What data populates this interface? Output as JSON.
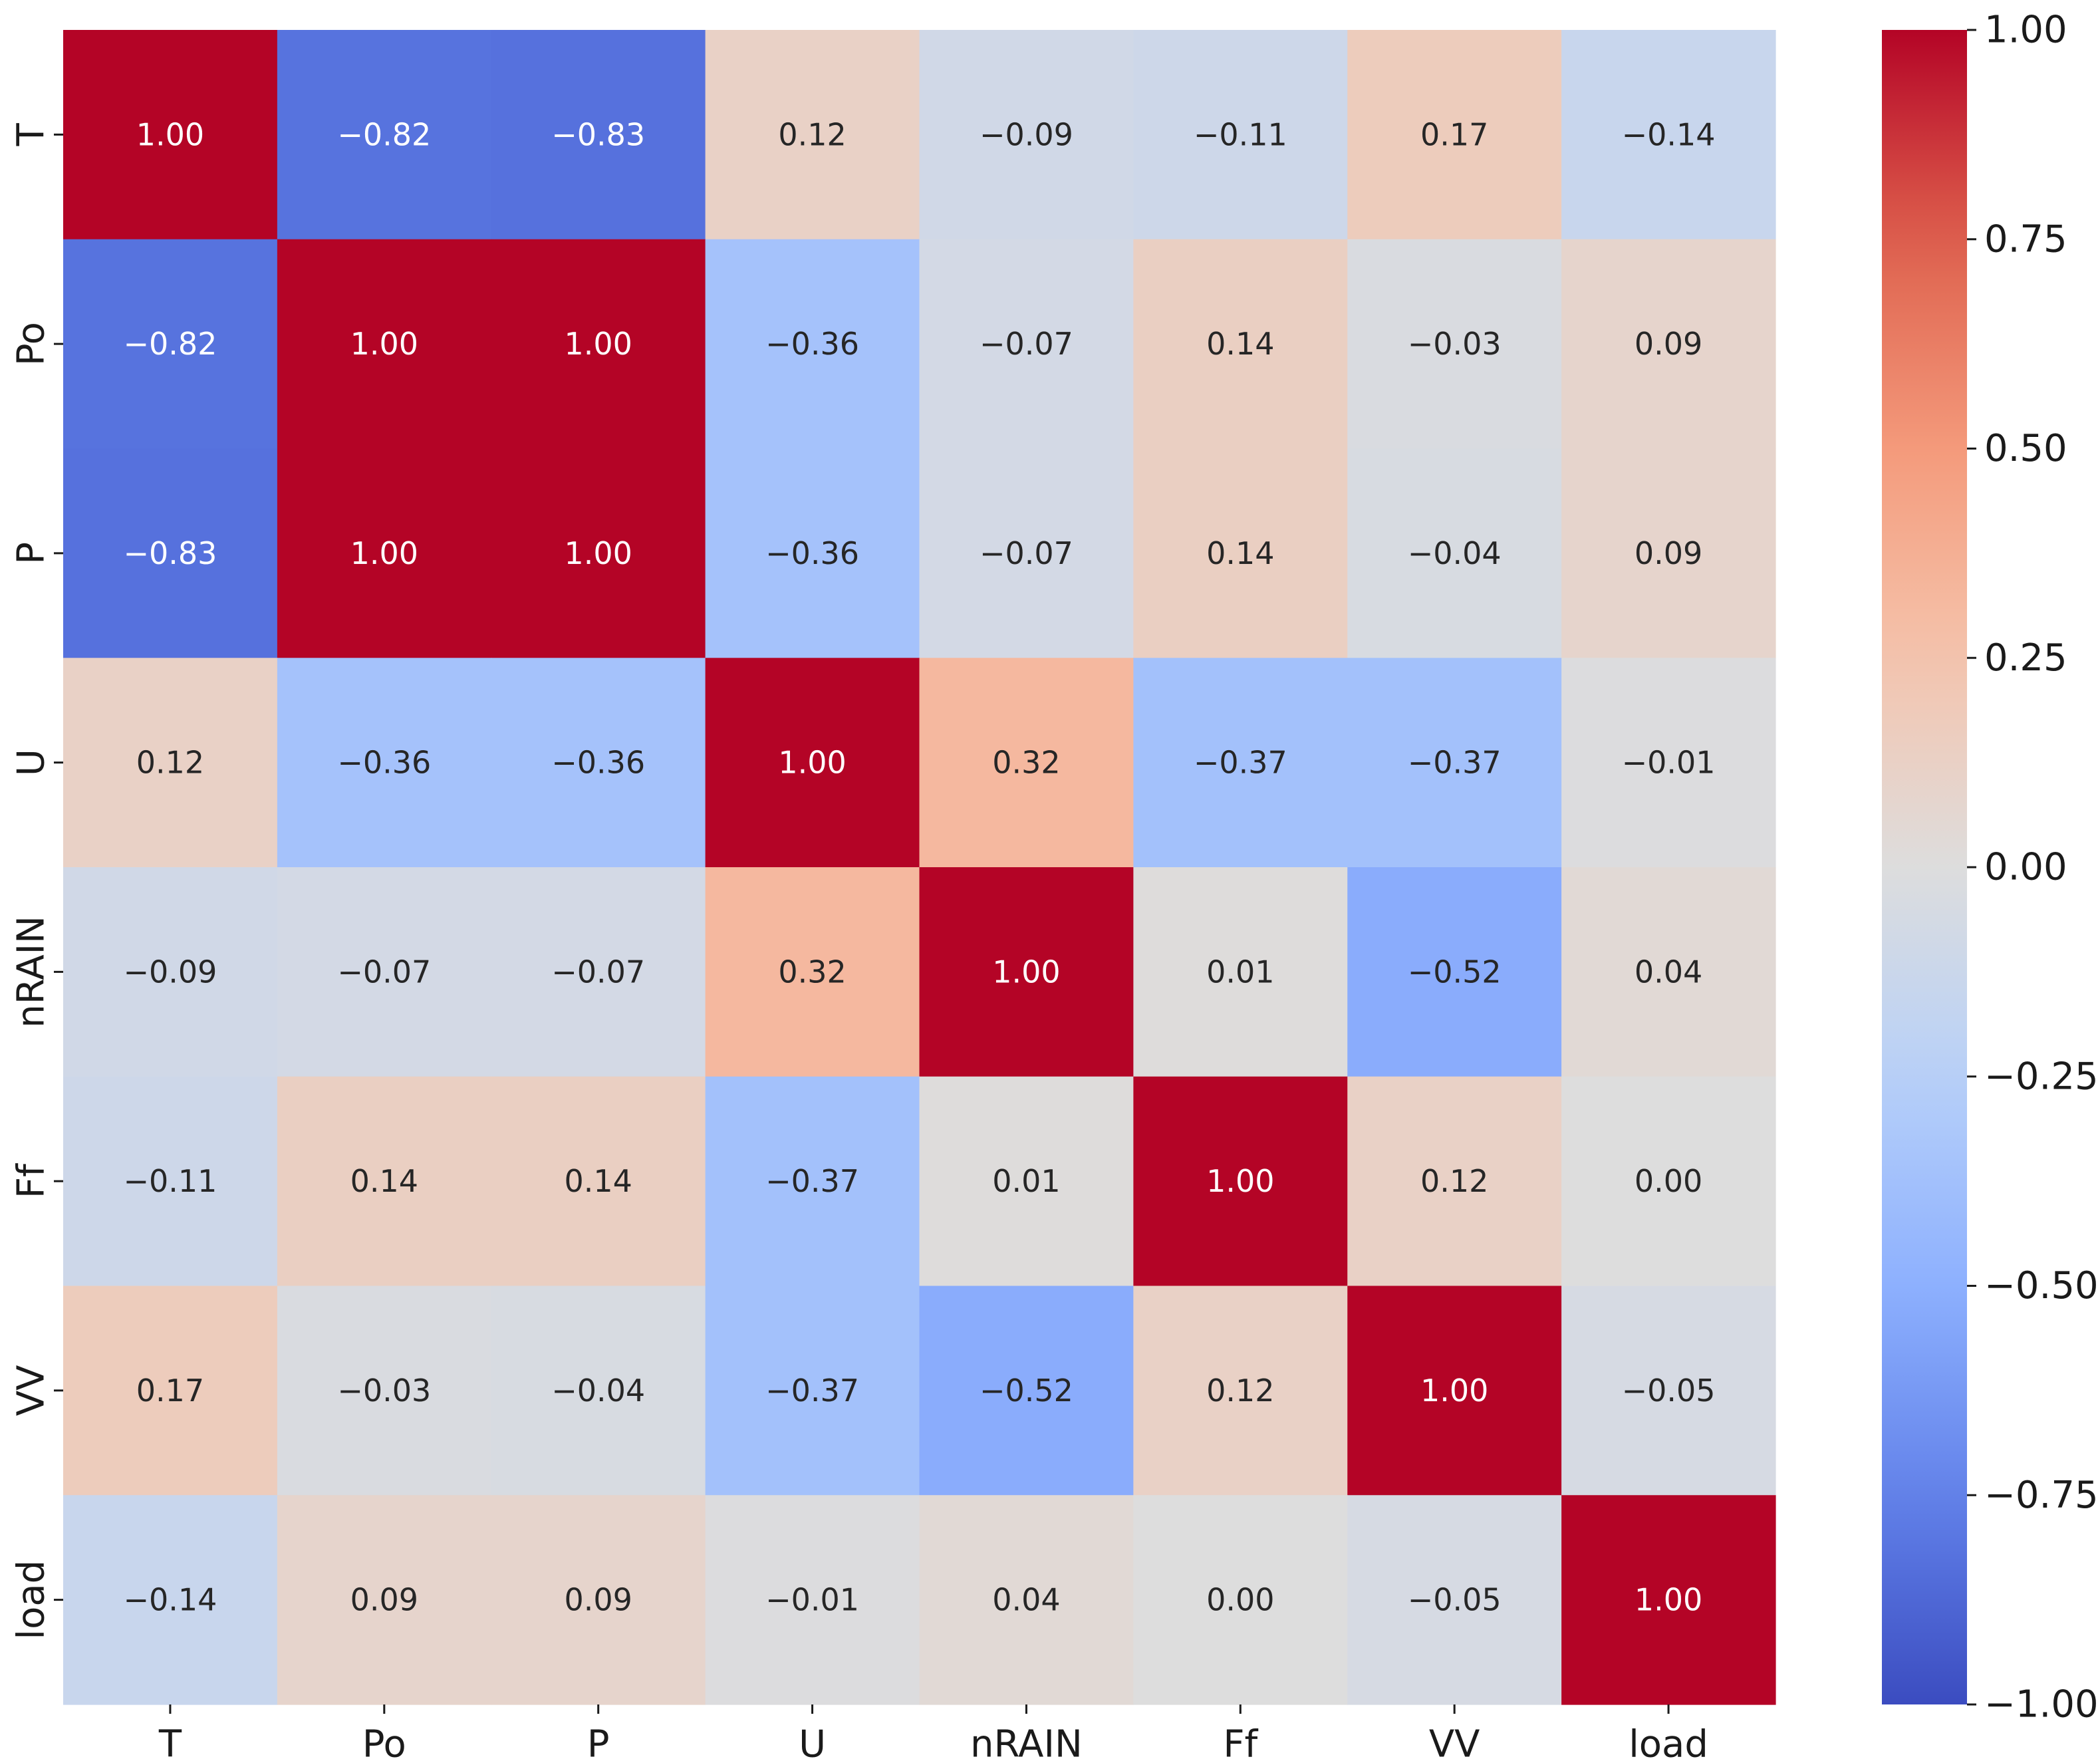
{
  "chart_data": {
    "type": "heatmap",
    "title": "",
    "xlabel": "",
    "ylabel": "",
    "colormap": "coolwarm",
    "vmin": -1.0,
    "vmax": 1.0,
    "x_labels": [
      "T",
      "Po",
      "P",
      "U",
      "nRAIN",
      "Ff",
      "VV",
      "load"
    ],
    "y_labels": [
      "T",
      "Po",
      "P",
      "U",
      "nRAIN",
      "Ff",
      "VV",
      "load"
    ],
    "values": [
      [
        1.0,
        -0.82,
        -0.83,
        0.12,
        -0.09,
        -0.11,
        0.17,
        -0.14
      ],
      [
        -0.82,
        1.0,
        1.0,
        -0.36,
        -0.07,
        0.14,
        -0.03,
        0.09
      ],
      [
        -0.83,
        1.0,
        1.0,
        -0.36,
        -0.07,
        0.14,
        -0.04,
        0.09
      ],
      [
        0.12,
        -0.36,
        -0.36,
        1.0,
        0.32,
        -0.37,
        -0.37,
        -0.01
      ],
      [
        -0.09,
        -0.07,
        -0.07,
        0.32,
        1.0,
        0.01,
        -0.52,
        0.04
      ],
      [
        -0.11,
        0.14,
        0.14,
        -0.37,
        0.01,
        1.0,
        0.12,
        0.0
      ],
      [
        0.17,
        -0.03,
        -0.04,
        -0.37,
        -0.52,
        0.12,
        1.0,
        -0.05
      ],
      [
        -0.14,
        0.09,
        0.09,
        -0.01,
        0.04,
        0.0,
        -0.05,
        1.0
      ]
    ],
    "colorbar": {
      "ticks": [
        1.0,
        0.75,
        0.5,
        0.25,
        0.0,
        -0.25,
        -0.5,
        -0.75,
        -1.0
      ],
      "tick_labels": [
        "1.00",
        "0.75",
        "0.50",
        "0.25",
        "0.00",
        "−0.25",
        "−0.50",
        "−0.75",
        "−1.00"
      ]
    },
    "annotation_format": "0.00",
    "light_text_color": "#ffffff",
    "dark_text_color": "#262626"
  }
}
